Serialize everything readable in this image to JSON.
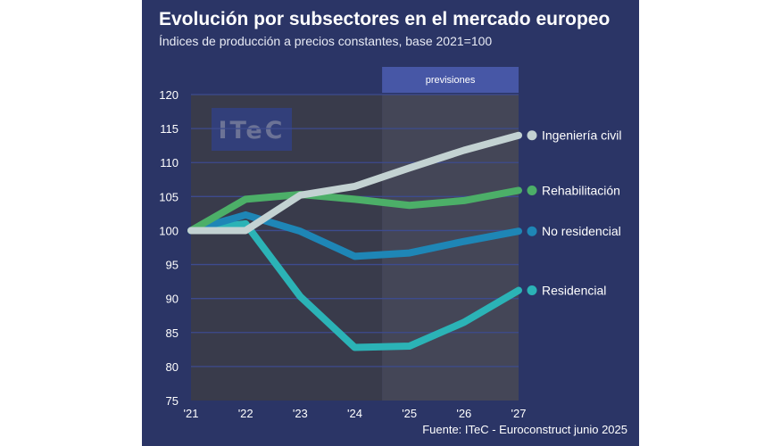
{
  "title": "Evolución por subsectores en el mercado europeo",
  "subtitle": "Índices de producción a precios constantes, base 2021=100",
  "source": "Fuente: ITeC - Euroconstruct junio 2025",
  "watermark": "ITeC",
  "forecast_label": "previsiones",
  "chart_data": {
    "type": "line",
    "categories": [
      "'21",
      "'22",
      "'23",
      "'24",
      "'25",
      "'26",
      "'27"
    ],
    "ylim": [
      75,
      120
    ],
    "yticks": [
      75,
      80,
      85,
      90,
      95,
      100,
      105,
      110,
      115,
      120
    ],
    "grid": true,
    "forecast_start": "'25",
    "legend": "right, end of lines",
    "series": [
      {
        "name": "Ingeniería civil",
        "color": "#c3d2d2",
        "values": [
          100,
          100,
          105.2,
          106.5,
          109.2,
          111.8,
          114
        ]
      },
      {
        "name": "Rehabilitación",
        "color": "#4caf68",
        "values": [
          100,
          104.6,
          105.3,
          104.6,
          103.7,
          104.4,
          105.9
        ]
      },
      {
        "name": "No residencial",
        "color": "#1e86b6",
        "values": [
          100,
          102.3,
          99.9,
          96.2,
          96.7,
          98.4,
          99.9
        ]
      },
      {
        "name": "Residencial",
        "color": "#2bb3b6",
        "values": [
          100,
          101,
          90.3,
          82.8,
          83,
          86.5,
          91.2
        ]
      }
    ]
  }
}
